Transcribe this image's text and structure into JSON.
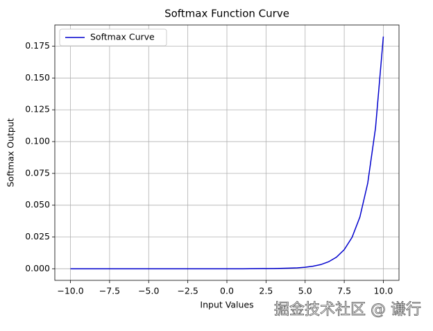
{
  "chart_data": {
    "type": "line",
    "title": "Softmax Function Curve",
    "x_label": "Input Values",
    "y_label": "Softmax Output",
    "x": [
      -10,
      -7.5,
      -5,
      -2.5,
      0,
      1,
      2,
      3,
      4,
      4.5,
      5,
      5.5,
      6,
      6.5,
      7,
      7.5,
      8,
      8.5,
      9,
      9.5,
      10
    ],
    "series": [
      {
        "name": "Softmax Curve",
        "color": "#0000cd",
        "values": [
          0,
          0,
          0,
          0,
          0,
          0,
          0.0001,
          0.0002,
          0.0005,
          0.0007,
          0.0012,
          0.002,
          0.0033,
          0.0055,
          0.0091,
          0.015,
          0.0247,
          0.0407,
          0.0672,
          0.1108,
          0.1826
        ]
      }
    ],
    "xlim": [
      -11,
      11
    ],
    "ylim": [
      -0.0091,
      0.1917
    ],
    "xticks": [
      {
        "value": -10,
        "label": "−10.0"
      },
      {
        "value": -7.5,
        "label": "−7.5"
      },
      {
        "value": -5,
        "label": "−5.0"
      },
      {
        "value": -2.5,
        "label": "−2.5"
      },
      {
        "value": 0,
        "label": "0.0"
      },
      {
        "value": 2.5,
        "label": "2.5"
      },
      {
        "value": 5,
        "label": "5.0"
      },
      {
        "value": 7.5,
        "label": "7.5"
      },
      {
        "value": 10,
        "label": "10.0"
      }
    ],
    "yticks": [
      {
        "value": 0,
        "label": "0.000"
      },
      {
        "value": 0.025,
        "label": "0.025"
      },
      {
        "value": 0.05,
        "label": "0.050"
      },
      {
        "value": 0.075,
        "label": "0.075"
      },
      {
        "value": 0.1,
        "label": "0.100"
      },
      {
        "value": 0.125,
        "label": "0.125"
      },
      {
        "value": 0.15,
        "label": "0.150"
      },
      {
        "value": 0.175,
        "label": "0.175"
      }
    ],
    "grid": true,
    "legend": "upper left"
  },
  "watermark": "掘金技术社区 @ 谦行"
}
